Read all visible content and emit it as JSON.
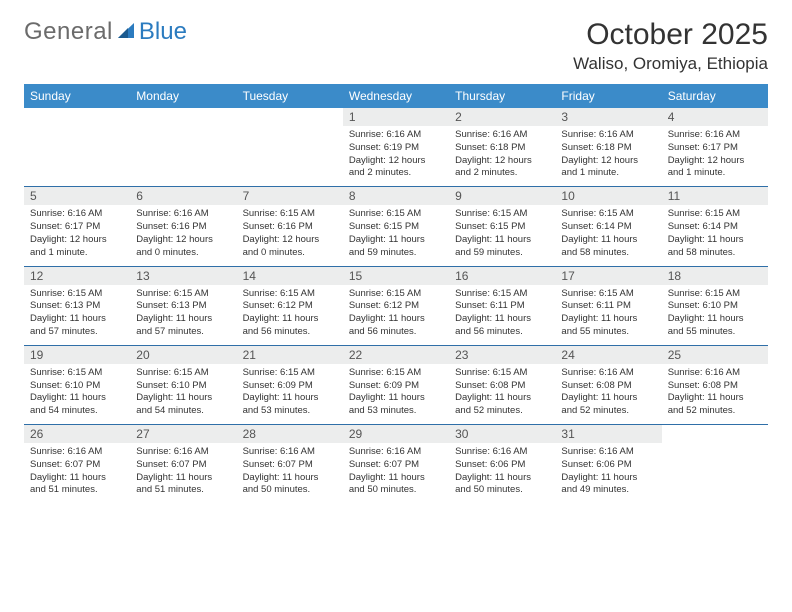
{
  "brand": {
    "text1": "General",
    "text2": "Blue"
  },
  "title": "October 2025",
  "location": "Waliso, Oromiya, Ethiopia",
  "colors": {
    "header_bg": "#3b8bc9",
    "header_text": "#ffffff",
    "daynum_bg": "#eceded",
    "row_border": "#2f6fa8",
    "logo_gray": "#6b6b6b",
    "logo_blue": "#2b7bbf"
  },
  "weekdays": [
    "Sunday",
    "Monday",
    "Tuesday",
    "Wednesday",
    "Thursday",
    "Friday",
    "Saturday"
  ],
  "weeks": [
    [
      {
        "blank": true
      },
      {
        "blank": true
      },
      {
        "blank": true
      },
      {
        "day": "1",
        "sunrise": "Sunrise: 6:16 AM",
        "sunset": "Sunset: 6:19 PM",
        "daylight": "Daylight: 12 hours and 2 minutes."
      },
      {
        "day": "2",
        "sunrise": "Sunrise: 6:16 AM",
        "sunset": "Sunset: 6:18 PM",
        "daylight": "Daylight: 12 hours and 2 minutes."
      },
      {
        "day": "3",
        "sunrise": "Sunrise: 6:16 AM",
        "sunset": "Sunset: 6:18 PM",
        "daylight": "Daylight: 12 hours and 1 minute."
      },
      {
        "day": "4",
        "sunrise": "Sunrise: 6:16 AM",
        "sunset": "Sunset: 6:17 PM",
        "daylight": "Daylight: 12 hours and 1 minute."
      }
    ],
    [
      {
        "day": "5",
        "sunrise": "Sunrise: 6:16 AM",
        "sunset": "Sunset: 6:17 PM",
        "daylight": "Daylight: 12 hours and 1 minute."
      },
      {
        "day": "6",
        "sunrise": "Sunrise: 6:16 AM",
        "sunset": "Sunset: 6:16 PM",
        "daylight": "Daylight: 12 hours and 0 minutes."
      },
      {
        "day": "7",
        "sunrise": "Sunrise: 6:15 AM",
        "sunset": "Sunset: 6:16 PM",
        "daylight": "Daylight: 12 hours and 0 minutes."
      },
      {
        "day": "8",
        "sunrise": "Sunrise: 6:15 AM",
        "sunset": "Sunset: 6:15 PM",
        "daylight": "Daylight: 11 hours and 59 minutes."
      },
      {
        "day": "9",
        "sunrise": "Sunrise: 6:15 AM",
        "sunset": "Sunset: 6:15 PM",
        "daylight": "Daylight: 11 hours and 59 minutes."
      },
      {
        "day": "10",
        "sunrise": "Sunrise: 6:15 AM",
        "sunset": "Sunset: 6:14 PM",
        "daylight": "Daylight: 11 hours and 58 minutes."
      },
      {
        "day": "11",
        "sunrise": "Sunrise: 6:15 AM",
        "sunset": "Sunset: 6:14 PM",
        "daylight": "Daylight: 11 hours and 58 minutes."
      }
    ],
    [
      {
        "day": "12",
        "sunrise": "Sunrise: 6:15 AM",
        "sunset": "Sunset: 6:13 PM",
        "daylight": "Daylight: 11 hours and 57 minutes."
      },
      {
        "day": "13",
        "sunrise": "Sunrise: 6:15 AM",
        "sunset": "Sunset: 6:13 PM",
        "daylight": "Daylight: 11 hours and 57 minutes."
      },
      {
        "day": "14",
        "sunrise": "Sunrise: 6:15 AM",
        "sunset": "Sunset: 6:12 PM",
        "daylight": "Daylight: 11 hours and 56 minutes."
      },
      {
        "day": "15",
        "sunrise": "Sunrise: 6:15 AM",
        "sunset": "Sunset: 6:12 PM",
        "daylight": "Daylight: 11 hours and 56 minutes."
      },
      {
        "day": "16",
        "sunrise": "Sunrise: 6:15 AM",
        "sunset": "Sunset: 6:11 PM",
        "daylight": "Daylight: 11 hours and 56 minutes."
      },
      {
        "day": "17",
        "sunrise": "Sunrise: 6:15 AM",
        "sunset": "Sunset: 6:11 PM",
        "daylight": "Daylight: 11 hours and 55 minutes."
      },
      {
        "day": "18",
        "sunrise": "Sunrise: 6:15 AM",
        "sunset": "Sunset: 6:10 PM",
        "daylight": "Daylight: 11 hours and 55 minutes."
      }
    ],
    [
      {
        "day": "19",
        "sunrise": "Sunrise: 6:15 AM",
        "sunset": "Sunset: 6:10 PM",
        "daylight": "Daylight: 11 hours and 54 minutes."
      },
      {
        "day": "20",
        "sunrise": "Sunrise: 6:15 AM",
        "sunset": "Sunset: 6:10 PM",
        "daylight": "Daylight: 11 hours and 54 minutes."
      },
      {
        "day": "21",
        "sunrise": "Sunrise: 6:15 AM",
        "sunset": "Sunset: 6:09 PM",
        "daylight": "Daylight: 11 hours and 53 minutes."
      },
      {
        "day": "22",
        "sunrise": "Sunrise: 6:15 AM",
        "sunset": "Sunset: 6:09 PM",
        "daylight": "Daylight: 11 hours and 53 minutes."
      },
      {
        "day": "23",
        "sunrise": "Sunrise: 6:15 AM",
        "sunset": "Sunset: 6:08 PM",
        "daylight": "Daylight: 11 hours and 52 minutes."
      },
      {
        "day": "24",
        "sunrise": "Sunrise: 6:16 AM",
        "sunset": "Sunset: 6:08 PM",
        "daylight": "Daylight: 11 hours and 52 minutes."
      },
      {
        "day": "25",
        "sunrise": "Sunrise: 6:16 AM",
        "sunset": "Sunset: 6:08 PM",
        "daylight": "Daylight: 11 hours and 52 minutes."
      }
    ],
    [
      {
        "day": "26",
        "sunrise": "Sunrise: 6:16 AM",
        "sunset": "Sunset: 6:07 PM",
        "daylight": "Daylight: 11 hours and 51 minutes."
      },
      {
        "day": "27",
        "sunrise": "Sunrise: 6:16 AM",
        "sunset": "Sunset: 6:07 PM",
        "daylight": "Daylight: 11 hours and 51 minutes."
      },
      {
        "day": "28",
        "sunrise": "Sunrise: 6:16 AM",
        "sunset": "Sunset: 6:07 PM",
        "daylight": "Daylight: 11 hours and 50 minutes."
      },
      {
        "day": "29",
        "sunrise": "Sunrise: 6:16 AM",
        "sunset": "Sunset: 6:07 PM",
        "daylight": "Daylight: 11 hours and 50 minutes."
      },
      {
        "day": "30",
        "sunrise": "Sunrise: 6:16 AM",
        "sunset": "Sunset: 6:06 PM",
        "daylight": "Daylight: 11 hours and 50 minutes."
      },
      {
        "day": "31",
        "sunrise": "Sunrise: 6:16 AM",
        "sunset": "Sunset: 6:06 PM",
        "daylight": "Daylight: 11 hours and 49 minutes."
      },
      {
        "blank": true
      }
    ]
  ]
}
